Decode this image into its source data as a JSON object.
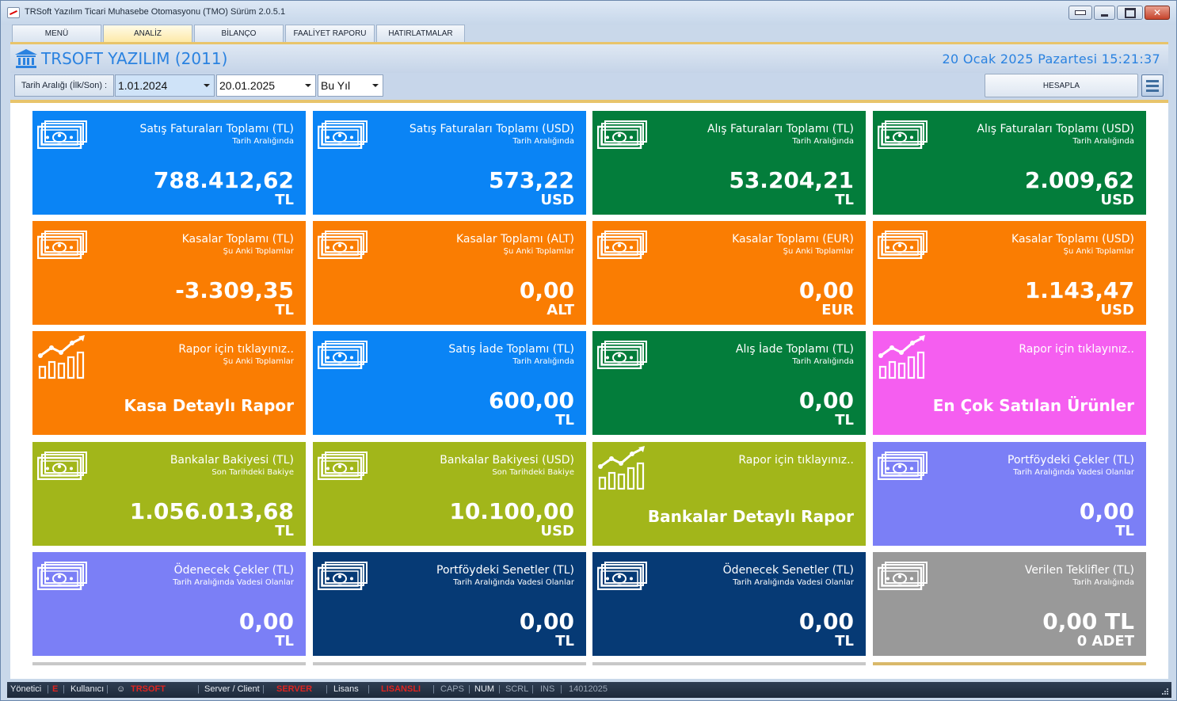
{
  "window": {
    "title": "TRSoft Yazılım Ticari Muhasebe Otomasyonu (TMO) Sürüm 2.0.5.1",
    "close_glyph": "✕"
  },
  "tabs": [
    {
      "label": "MENÜ"
    },
    {
      "label": "ANALİZ"
    },
    {
      "label": "BİLANÇO"
    },
    {
      "label": "FAALİYET RAPORU"
    },
    {
      "label": "HATIRLATMALAR"
    }
  ],
  "header": {
    "app_name": "TRSOFT YAZILIM (2011)",
    "datetime": "20 Ocak 2025 Pazartesi 15:21:37",
    "icon": "bank-icon"
  },
  "filters": {
    "label": "Tarih Aralığı (İlk/Son) :",
    "start_date": "1.01.2024",
    "end_date": "20.01.2025",
    "period": "Bu Yıl",
    "calculate_label": "HESAPLA"
  },
  "colors": {
    "blue": "#0a84f5",
    "green": "#037d3b",
    "orange": "#fa7d02",
    "magenta": "#f55ef0",
    "olive": "#a2b61a",
    "periwinkle": "#7b7ff6",
    "navy": "#063a75",
    "gray": "#999999"
  },
  "tiles": [
    {
      "title": "Satış Faturaları Toplamı (TL)",
      "sub": "Tarih Aralığında",
      "value": "788.412,62",
      "unit": "TL",
      "color": "#0a84f5",
      "icon": "money-icon"
    },
    {
      "title": "Satış Faturaları Toplamı (USD)",
      "sub": "Tarih Aralığında",
      "value": "573,22",
      "unit": "USD",
      "color": "#0a84f5",
      "icon": "money-icon"
    },
    {
      "title": "Alış Faturaları Toplamı (TL)",
      "sub": "Tarih Aralığında",
      "value": "53.204,21",
      "unit": "TL",
      "color": "#037d3b",
      "icon": "money-icon"
    },
    {
      "title": "Alış Faturaları Toplamı (USD)",
      "sub": "Tarih Aralığında",
      "value": "2.009,62",
      "unit": "USD",
      "color": "#037d3b",
      "icon": "money-icon"
    },
    {
      "title": "Kasalar Toplamı (TL)",
      "sub": "Şu Anki Toplamlar",
      "value": "-3.309,35",
      "unit": "TL",
      "color": "#fa7d02",
      "icon": "money-icon"
    },
    {
      "title": "Kasalar Toplamı (ALT)",
      "sub": "Şu Anki Toplamlar",
      "value": "0,00",
      "unit": "ALT",
      "color": "#fa7d02",
      "icon": "money-icon"
    },
    {
      "title": "Kasalar Toplamı (EUR)",
      "sub": "Şu Anki Toplamlar",
      "value": "0,00",
      "unit": "EUR",
      "color": "#fa7d02",
      "icon": "money-icon"
    },
    {
      "title": "Kasalar Toplamı (USD)",
      "sub": "Şu Anki Toplamlar",
      "value": "1.143,47",
      "unit": "USD",
      "color": "#fa7d02",
      "icon": "money-icon"
    },
    {
      "title": "Rapor için tıklayınız..",
      "sub": "Şu Anki Toplamlar",
      "big": "Kasa Detaylı Rapor",
      "color": "#fa7d02",
      "icon": "chart-icon"
    },
    {
      "title": "Satış İade Toplamı (TL)",
      "sub": "Tarih Aralığında",
      "value": "600,00",
      "unit": "TL",
      "color": "#0a84f5",
      "icon": "money-icon"
    },
    {
      "title": "Alış İade Toplamı (TL)",
      "sub": "Tarih Aralığında",
      "value": "0,00",
      "unit": "TL",
      "color": "#037d3b",
      "icon": "money-icon"
    },
    {
      "title": "Rapor için tıklayınız..",
      "sub": "",
      "big": "En Çok Satılan Ürünler",
      "color": "#f55ef0",
      "icon": "chart-icon"
    },
    {
      "title": "Bankalar Bakiyesi (TL)",
      "sub": "Son Tarihdeki Bakiye",
      "value": "1.056.013,68",
      "unit": "TL",
      "color": "#a2b61a",
      "icon": "money-icon"
    },
    {
      "title": "Bankalar Bakiyesi (USD)",
      "sub": "Son Tarihdeki Bakiye",
      "value": "10.100,00",
      "unit": "USD",
      "color": "#a2b61a",
      "icon": "money-icon"
    },
    {
      "title": "Rapor için tıklayınız..",
      "sub": "",
      "big": "Bankalar Detaylı Rapor",
      "color": "#a2b61a",
      "icon": "chart-icon"
    },
    {
      "title": "Portföydeki Çekler (TL)",
      "sub": "Tarih Aralığında Vadesi Olanlar",
      "value": "0,00",
      "unit": "TL",
      "color": "#7b7ff6",
      "icon": "money-icon"
    },
    {
      "title": "Ödenecek Çekler (TL)",
      "sub": "Tarih Aralığında Vadesi Olanlar",
      "value": "0,00",
      "unit": "TL",
      "color": "#7b7ff6",
      "icon": "money-icon"
    },
    {
      "title": "Portföydeki Senetler (TL)",
      "sub": "Tarih Aralığında Vadesi Olanlar",
      "value": "0,00",
      "unit": "TL",
      "color": "#063a75",
      "icon": "money-icon"
    },
    {
      "title": "Ödenecek Senetler (TL)",
      "sub": "Tarih Aralığında Vadesi Olanlar",
      "value": "0,00",
      "unit": "TL",
      "color": "#063a75",
      "icon": "money-icon"
    },
    {
      "title": "Verilen Teklifler (TL)",
      "sub": "Tarih Aralığında",
      "value": "0,00 TL",
      "unit": "0 ADET",
      "color": "#999999",
      "icon": "money-icon"
    }
  ],
  "status": {
    "user_label": "Yönetici",
    "user_flag": "E",
    "user_type": "Kullanıcı",
    "brand": "TRSOFT",
    "mode": "Server / Client",
    "mode_value": "SERVER",
    "license_label": "Lisans",
    "license_value": "LISANSLI",
    "caps": "CAPS",
    "num": "NUM",
    "scrl": "SCRL",
    "ins": "INS",
    "build": "14012025"
  }
}
